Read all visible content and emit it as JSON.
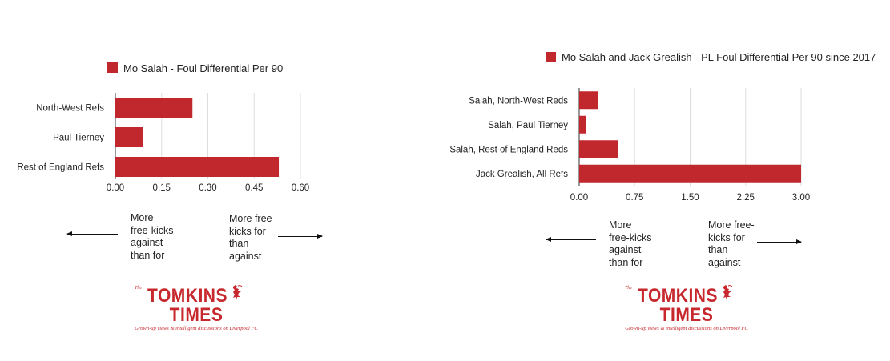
{
  "colors": {
    "bar": "#c0282e",
    "grid": "#dddddd",
    "logo": "#c7282d"
  },
  "chart_data": [
    {
      "type": "bar",
      "orientation": "horizontal",
      "title": "",
      "legend": "top",
      "series": [
        {
          "name": "Mo Salah - Foul Differential Per 90",
          "values": [
            0.25,
            0.09,
            0.53
          ]
        }
      ],
      "categories": [
        "North-West Refs",
        "Paul Tierney",
        "Rest of England Refs"
      ],
      "xlim": [
        0,
        0.6
      ],
      "xticks": [
        "0.00",
        "0.15",
        "0.30",
        "0.45",
        "0.60"
      ],
      "grid": true
    },
    {
      "type": "bar",
      "orientation": "horizontal",
      "title": "",
      "legend": "top",
      "series": [
        {
          "name": "Mo Salah and Jack Grealish - PL Foul Differential Per 90 since 2017",
          "values": [
            0.25,
            0.09,
            0.53,
            3.0
          ]
        }
      ],
      "categories": [
        "Salah, North-West Reds",
        "Salah, Paul Tierney",
        "Salah, Rest of England Reds",
        "Jack Grealish, All Refs"
      ],
      "xlim": [
        0,
        3
      ],
      "xticks": [
        "0.00",
        "0.75",
        "1.50",
        "2.25",
        "3.00"
      ],
      "grid": true
    }
  ],
  "annotations": {
    "left_against": "More\nfree-kicks\nagainst\nthan for",
    "left_for": "More free-\nkicks for\nthan\nagainst",
    "right_against": "More\nfree-kicks\nagainst\nthan for",
    "right_for": "More free-\nkicks for\nthan\nagainst"
  },
  "logo": {
    "the": "The",
    "word_left": "TOMKINS",
    "word_right": "TIMES",
    "tagline": "Grown-up views & intelligent discussions on Liverpool FC",
    "icon": "liverbird-icon"
  }
}
